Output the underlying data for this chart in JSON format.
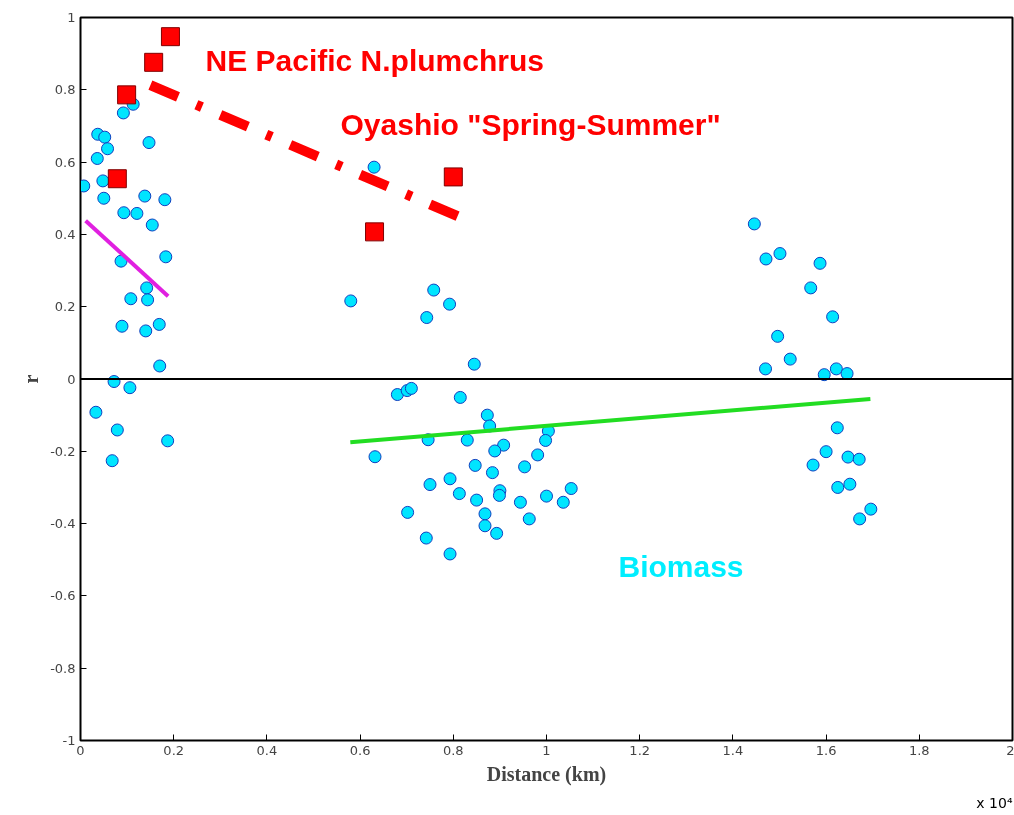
{
  "chart_data": {
    "type": "scatter",
    "xlabel": "Distance (km)",
    "ylabel": "r",
    "xlim": [
      0,
      2
    ],
    "xticks": [
      0,
      0.2,
      0.4,
      0.6,
      0.8,
      1,
      1.2,
      1.4,
      1.6,
      1.8,
      2
    ],
    "ylim": [
      -1,
      1
    ],
    "yticks": [
      -1,
      -0.8,
      -0.6,
      -0.4,
      -0.2,
      0,
      0.2,
      0.4,
      0.6,
      0.8,
      1
    ],
    "grid": false,
    "ref_lines": [
      {
        "axis": "y",
        "value": 0,
        "color": "#000000"
      }
    ],
    "annotations": [
      "NE Pacific N.plumchrus",
      "Oyashio \"Spring-Summer\"",
      "Biomass",
      "x 10⁴"
    ],
    "series": [
      {
        "marker": "circle",
        "color": "#00e5ff",
        "x": [
          0.007,
          0.037,
          0.052,
          0.058,
          0.036,
          0.048,
          0.05,
          0.092,
          0.113,
          0.147,
          0.138,
          0.181,
          0.093,
          0.121,
          0.154,
          0.087,
          0.183,
          0.142,
          0.108,
          0.144,
          0.089,
          0.14,
          0.169,
          0.17,
          0.072,
          0.106,
          0.033,
          0.079,
          0.187,
          0.068,
          0.63,
          0.58,
          0.758,
          0.792,
          0.743,
          0.845,
          0.68,
          0.701,
          0.71,
          0.815,
          0.746,
          0.83,
          0.632,
          0.873,
          0.878,
          0.908,
          0.889,
          1.004,
          0.998,
          0.981,
          0.953,
          0.847,
          0.884,
          0.793,
          0.75,
          0.813,
          0.85,
          0.9,
          0.899,
          0.944,
          1.0,
          1.053,
          1.036,
          0.963,
          0.868,
          0.868,
          0.893,
          0.702,
          0.742,
          0.793,
          1.446,
          1.471,
          1.501,
          1.587,
          1.567,
          1.614,
          1.496,
          1.523,
          1.47,
          1.596,
          1.622,
          1.645,
          1.624,
          1.6,
          1.572,
          1.647,
          1.671,
          1.625,
          1.651,
          1.696,
          1.672
        ],
        "values": [
          0.534,
          0.677,
          0.669,
          0.637,
          0.61,
          0.548,
          0.5,
          0.736,
          0.76,
          0.654,
          0.506,
          0.496,
          0.46,
          0.458,
          0.426,
          0.326,
          0.338,
          0.252,
          0.222,
          0.219,
          0.146,
          0.133,
          0.151,
          0.036,
          -0.007,
          -0.024,
          -0.092,
          -0.141,
          -0.171,
          -0.226,
          0.586,
          0.216,
          0.246,
          0.207,
          0.17,
          0.041,
          -0.043,
          -0.032,
          -0.026,
          -0.051,
          -0.168,
          -0.169,
          -0.215,
          -0.1,
          -0.13,
          -0.183,
          -0.199,
          -0.144,
          -0.17,
          -0.21,
          -0.243,
          -0.239,
          -0.259,
          -0.276,
          -0.292,
          -0.317,
          -0.335,
          -0.309,
          -0.322,
          -0.341,
          -0.324,
          -0.303,
          -0.341,
          -0.387,
          -0.373,
          -0.406,
          -0.427,
          -0.369,
          -0.44,
          -0.484,
          0.429,
          0.332,
          0.347,
          0.32,
          0.252,
          0.172,
          0.118,
          0.055,
          0.028,
          0.012,
          0.028,
          0.015,
          -0.135,
          -0.201,
          -0.238,
          -0.216,
          -0.222,
          -0.3,
          -0.291,
          -0.36,
          -0.387
        ]
      },
      {
        "marker": "square",
        "color": "#ff0000",
        "x": [
          0.079,
          0.099,
          0.157,
          0.193,
          0.631,
          0.8
        ],
        "values": [
          0.554,
          0.786,
          0.876,
          0.947,
          0.407,
          0.559
        ]
      },
      {
        "type": "line",
        "line_style": "solid",
        "color": "#e020e0",
        "x": [
          0.011,
          0.188
        ],
        "values": [
          0.438,
          0.229
        ]
      },
      {
        "type": "line",
        "line_style": "dashdot",
        "color": "#ff0000",
        "x": [
          0.15,
          0.819
        ],
        "values": [
          0.813,
          0.445
        ]
      },
      {
        "type": "line",
        "line_style": "solid",
        "color": "#22dd22",
        "x": [
          0.579,
          1.695
        ],
        "values": [
          -0.175,
          -0.055
        ]
      }
    ]
  }
}
